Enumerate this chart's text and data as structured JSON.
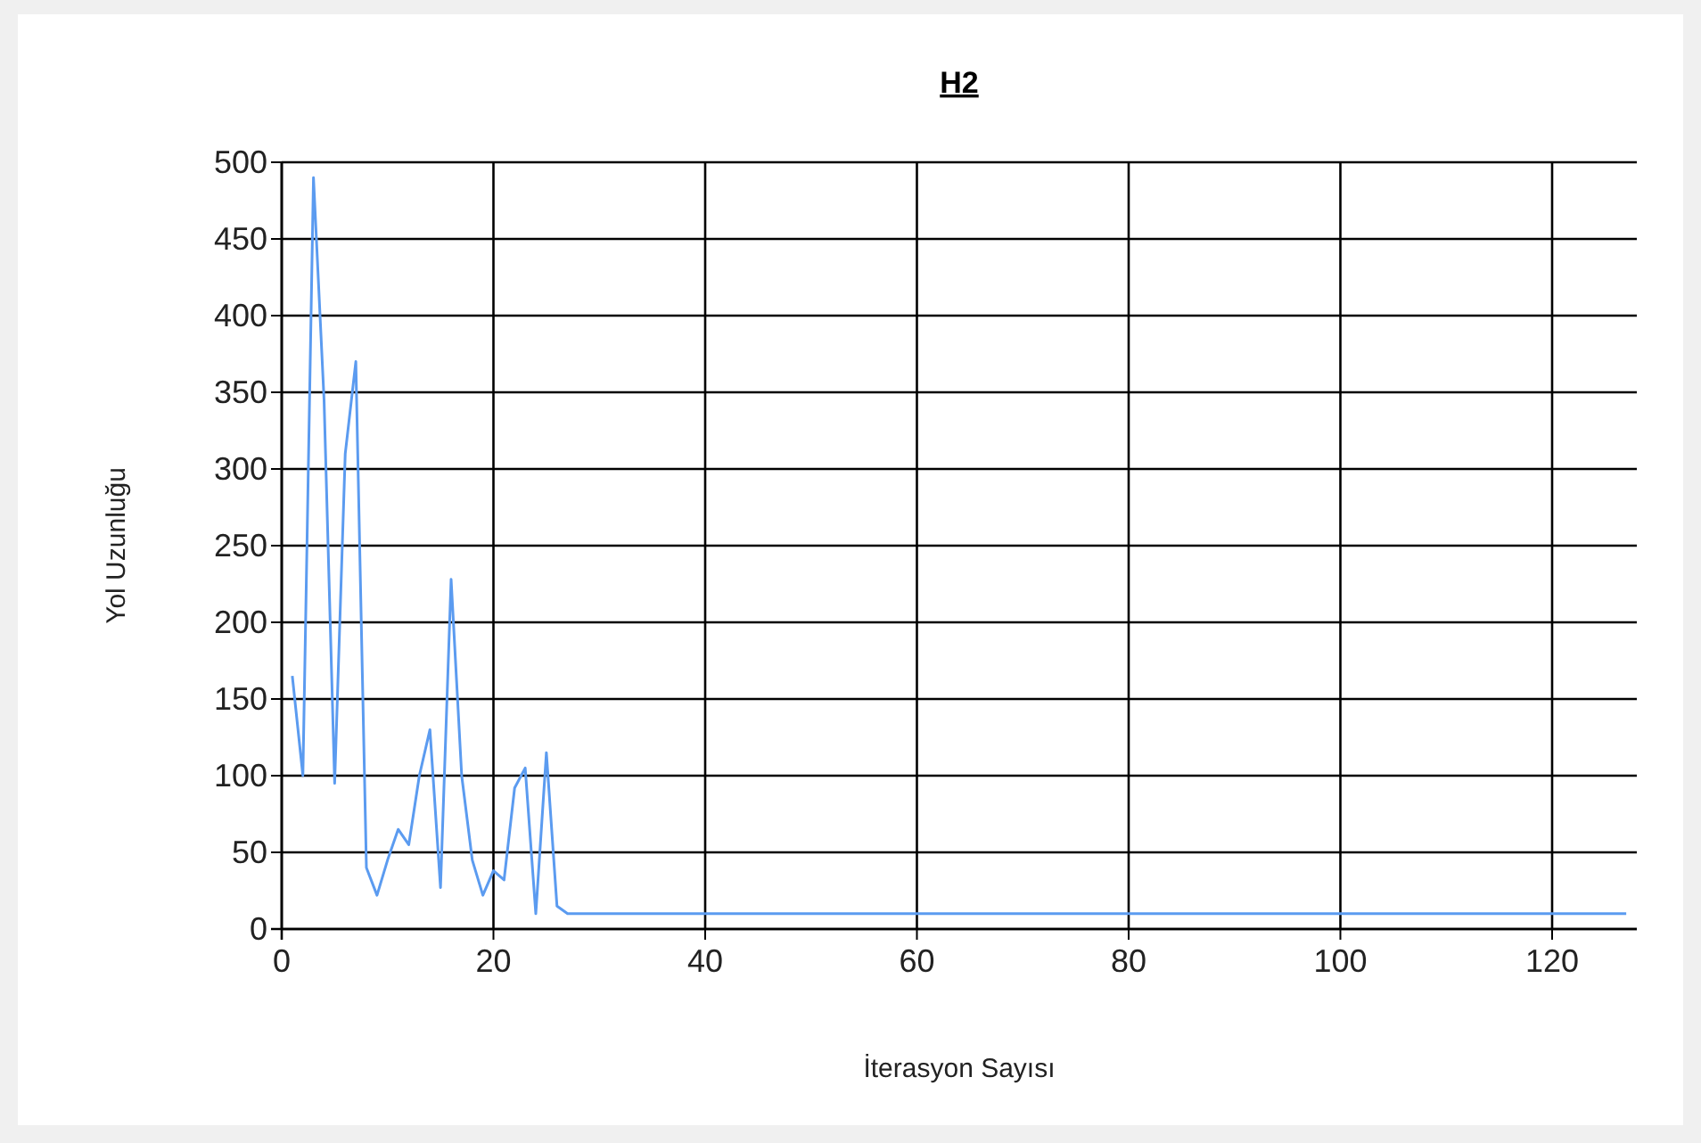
{
  "chart_data": {
    "type": "line",
    "title": "H2",
    "xlabel": "İterasyon Sayısı",
    "ylabel": "Yol Uzunluğu",
    "x": [
      1,
      2,
      3,
      4,
      5,
      6,
      7,
      8,
      9,
      10,
      11,
      12,
      13,
      14,
      15,
      16,
      17,
      18,
      19,
      20,
      21,
      22,
      23,
      24,
      25,
      26,
      27,
      127
    ],
    "series": [
      {
        "color": "#5b9bf0",
        "values": [
          165,
          100,
          490,
          345,
          95,
          310,
          370,
          40,
          22,
          45,
          65,
          55,
          100,
          130,
          27,
          228,
          100,
          45,
          22,
          38,
          32,
          92,
          105,
          10,
          115,
          15,
          10,
          10
        ]
      }
    ],
    "xlim": [
      0,
      128
    ],
    "xticks": [
      0,
      20,
      40,
      60,
      80,
      100,
      120
    ],
    "ylim": [
      0,
      500
    ],
    "yticks": [
      0,
      50,
      100,
      150,
      200,
      250,
      300,
      350,
      400,
      450,
      500
    ],
    "grid": true,
    "marker": "none",
    "line_style": "solid"
  }
}
